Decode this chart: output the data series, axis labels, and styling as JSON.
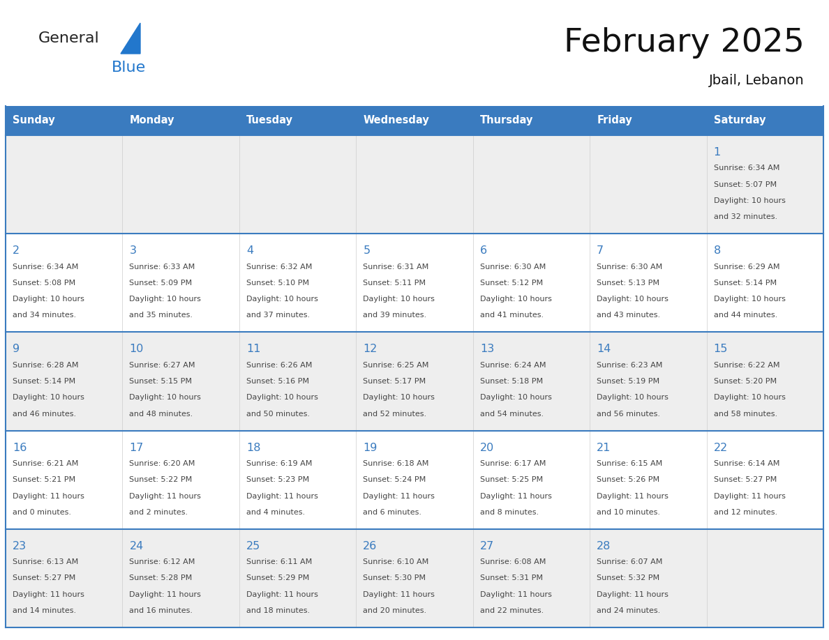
{
  "title": "February 2025",
  "subtitle": "Jbail, Lebanon",
  "days_of_week": [
    "Sunday",
    "Monday",
    "Tuesday",
    "Wednesday",
    "Thursday",
    "Friday",
    "Saturday"
  ],
  "header_bg_color": "#3a7bbf",
  "header_text_color": "#ffffff",
  "cell_bg_color_odd": "#eeeeee",
  "cell_bg_color_even": "#ffffff",
  "cell_border_color": "#3a7bbf",
  "day_number_color": "#3a7bbf",
  "text_color": "#444444",
  "title_color": "#111111",
  "logo_general_color": "#222222",
  "logo_blue_color": "#2277cc",
  "weeks": [
    [
      null,
      null,
      null,
      null,
      null,
      null,
      1
    ],
    [
      2,
      3,
      4,
      5,
      6,
      7,
      8
    ],
    [
      9,
      10,
      11,
      12,
      13,
      14,
      15
    ],
    [
      16,
      17,
      18,
      19,
      20,
      21,
      22
    ],
    [
      23,
      24,
      25,
      26,
      27,
      28,
      null
    ]
  ],
  "day_data": {
    "1": {
      "sunrise": "6:34 AM",
      "sunset": "5:07 PM",
      "daylight_h": "10 hours",
      "daylight_m": "and 32 minutes."
    },
    "2": {
      "sunrise": "6:34 AM",
      "sunset": "5:08 PM",
      "daylight_h": "10 hours",
      "daylight_m": "and 34 minutes."
    },
    "3": {
      "sunrise": "6:33 AM",
      "sunset": "5:09 PM",
      "daylight_h": "10 hours",
      "daylight_m": "and 35 minutes."
    },
    "4": {
      "sunrise": "6:32 AM",
      "sunset": "5:10 PM",
      "daylight_h": "10 hours",
      "daylight_m": "and 37 minutes."
    },
    "5": {
      "sunrise": "6:31 AM",
      "sunset": "5:11 PM",
      "daylight_h": "10 hours",
      "daylight_m": "and 39 minutes."
    },
    "6": {
      "sunrise": "6:30 AM",
      "sunset": "5:12 PM",
      "daylight_h": "10 hours",
      "daylight_m": "and 41 minutes."
    },
    "7": {
      "sunrise": "6:30 AM",
      "sunset": "5:13 PM",
      "daylight_h": "10 hours",
      "daylight_m": "and 43 minutes."
    },
    "8": {
      "sunrise": "6:29 AM",
      "sunset": "5:14 PM",
      "daylight_h": "10 hours",
      "daylight_m": "and 44 minutes."
    },
    "9": {
      "sunrise": "6:28 AM",
      "sunset": "5:14 PM",
      "daylight_h": "10 hours",
      "daylight_m": "and 46 minutes."
    },
    "10": {
      "sunrise": "6:27 AM",
      "sunset": "5:15 PM",
      "daylight_h": "10 hours",
      "daylight_m": "and 48 minutes."
    },
    "11": {
      "sunrise": "6:26 AM",
      "sunset": "5:16 PM",
      "daylight_h": "10 hours",
      "daylight_m": "and 50 minutes."
    },
    "12": {
      "sunrise": "6:25 AM",
      "sunset": "5:17 PM",
      "daylight_h": "10 hours",
      "daylight_m": "and 52 minutes."
    },
    "13": {
      "sunrise": "6:24 AM",
      "sunset": "5:18 PM",
      "daylight_h": "10 hours",
      "daylight_m": "and 54 minutes."
    },
    "14": {
      "sunrise": "6:23 AM",
      "sunset": "5:19 PM",
      "daylight_h": "10 hours",
      "daylight_m": "and 56 minutes."
    },
    "15": {
      "sunrise": "6:22 AM",
      "sunset": "5:20 PM",
      "daylight_h": "10 hours",
      "daylight_m": "and 58 minutes."
    },
    "16": {
      "sunrise": "6:21 AM",
      "sunset": "5:21 PM",
      "daylight_h": "11 hours",
      "daylight_m": "and 0 minutes."
    },
    "17": {
      "sunrise": "6:20 AM",
      "sunset": "5:22 PM",
      "daylight_h": "11 hours",
      "daylight_m": "and 2 minutes."
    },
    "18": {
      "sunrise": "6:19 AM",
      "sunset": "5:23 PM",
      "daylight_h": "11 hours",
      "daylight_m": "and 4 minutes."
    },
    "19": {
      "sunrise": "6:18 AM",
      "sunset": "5:24 PM",
      "daylight_h": "11 hours",
      "daylight_m": "and 6 minutes."
    },
    "20": {
      "sunrise": "6:17 AM",
      "sunset": "5:25 PM",
      "daylight_h": "11 hours",
      "daylight_m": "and 8 minutes."
    },
    "21": {
      "sunrise": "6:15 AM",
      "sunset": "5:26 PM",
      "daylight_h": "11 hours",
      "daylight_m": "and 10 minutes."
    },
    "22": {
      "sunrise": "6:14 AM",
      "sunset": "5:27 PM",
      "daylight_h": "11 hours",
      "daylight_m": "and 12 minutes."
    },
    "23": {
      "sunrise": "6:13 AM",
      "sunset": "5:27 PM",
      "daylight_h": "11 hours",
      "daylight_m": "and 14 minutes."
    },
    "24": {
      "sunrise": "6:12 AM",
      "sunset": "5:28 PM",
      "daylight_h": "11 hours",
      "daylight_m": "and 16 minutes."
    },
    "25": {
      "sunrise": "6:11 AM",
      "sunset": "5:29 PM",
      "daylight_h": "11 hours",
      "daylight_m": "and 18 minutes."
    },
    "26": {
      "sunrise": "6:10 AM",
      "sunset": "5:30 PM",
      "daylight_h": "11 hours",
      "daylight_m": "and 20 minutes."
    },
    "27": {
      "sunrise": "6:08 AM",
      "sunset": "5:31 PM",
      "daylight_h": "11 hours",
      "daylight_m": "and 22 minutes."
    },
    "28": {
      "sunrise": "6:07 AM",
      "sunset": "5:32 PM",
      "daylight_h": "11 hours",
      "daylight_m": "and 24 minutes."
    }
  },
  "fig_width": 11.88,
  "fig_height": 9.18
}
